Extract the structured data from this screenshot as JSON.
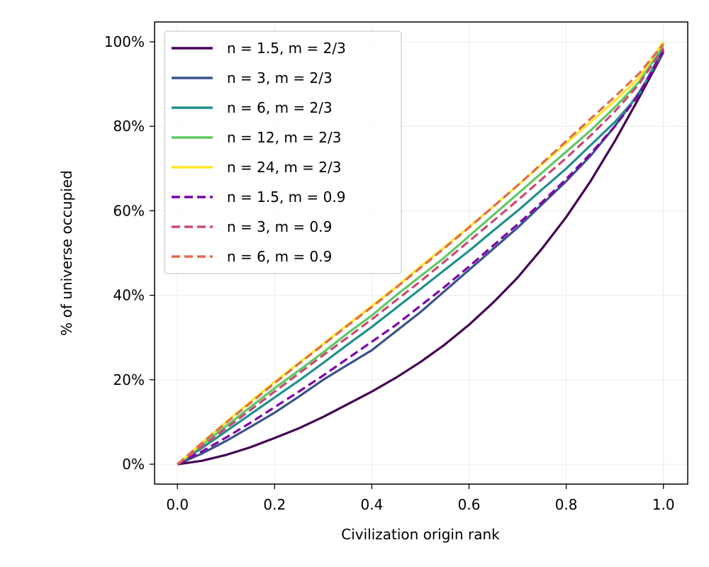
{
  "chart_data": {
    "type": "line",
    "title": "",
    "xlabel": "Civilization origin rank",
    "ylabel": "% of universe occupied",
    "xlim": [
      -0.047,
      1.05
    ],
    "ylim": [
      -0.047,
      1.047
    ],
    "x_ticks": [
      0.0,
      0.2,
      0.4,
      0.6,
      0.8,
      1.0
    ],
    "x_tick_labels": [
      "0.0",
      "0.2",
      "0.4",
      "0.6",
      "0.8",
      "1.0"
    ],
    "y_ticks": [
      0,
      0.2,
      0.4,
      0.6,
      0.8,
      1.0
    ],
    "y_tick_labels": [
      "0%",
      "20%",
      "40%",
      "60%",
      "80%",
      "100%"
    ],
    "grid": true,
    "legend_position": "upper-left",
    "series": [
      {
        "name": "n = 1.5, m = 2/3",
        "color": "#440154",
        "dash": "solid",
        "points": [
          [
            0,
            0
          ],
          [
            0.05,
            0.008
          ],
          [
            0.1,
            0.022
          ],
          [
            0.15,
            0.04
          ],
          [
            0.2,
            0.062
          ],
          [
            0.25,
            0.085
          ],
          [
            0.3,
            0.112
          ],
          [
            0.35,
            0.142
          ],
          [
            0.4,
            0.172
          ],
          [
            0.45,
            0.205
          ],
          [
            0.5,
            0.242
          ],
          [
            0.55,
            0.283
          ],
          [
            0.6,
            0.33
          ],
          [
            0.65,
            0.383
          ],
          [
            0.7,
            0.442
          ],
          [
            0.75,
            0.51
          ],
          [
            0.8,
            0.585
          ],
          [
            0.85,
            0.67
          ],
          [
            0.9,
            0.765
          ],
          [
            0.95,
            0.868
          ],
          [
            1.0,
            0.975
          ]
        ]
      },
      {
        "name": "n = 3, m = 2/3",
        "color": "#3b528b",
        "dash": "solid",
        "points": [
          [
            0,
            0
          ],
          [
            0.05,
            0.025
          ],
          [
            0.1,
            0.055
          ],
          [
            0.15,
            0.088
          ],
          [
            0.2,
            0.122
          ],
          [
            0.25,
            0.16
          ],
          [
            0.3,
            0.2
          ],
          [
            0.35,
            0.235
          ],
          [
            0.4,
            0.27
          ],
          [
            0.45,
            0.315
          ],
          [
            0.5,
            0.36
          ],
          [
            0.55,
            0.41
          ],
          [
            0.6,
            0.46
          ],
          [
            0.65,
            0.51
          ],
          [
            0.7,
            0.56
          ],
          [
            0.75,
            0.615
          ],
          [
            0.8,
            0.67
          ],
          [
            0.85,
            0.73
          ],
          [
            0.9,
            0.8
          ],
          [
            0.95,
            0.88
          ],
          [
            1.0,
            0.975
          ]
        ]
      },
      {
        "name": "n = 6, m = 2/3",
        "color": "#21918c",
        "dash": "solid",
        "points": [
          [
            0,
            0
          ],
          [
            0.05,
            0.038
          ],
          [
            0.1,
            0.078
          ],
          [
            0.15,
            0.118
          ],
          [
            0.2,
            0.158
          ],
          [
            0.25,
            0.198
          ],
          [
            0.3,
            0.24
          ],
          [
            0.35,
            0.283
          ],
          [
            0.4,
            0.325
          ],
          [
            0.45,
            0.37
          ],
          [
            0.5,
            0.415
          ],
          [
            0.55,
            0.46
          ],
          [
            0.6,
            0.505
          ],
          [
            0.65,
            0.553
          ],
          [
            0.7,
            0.6
          ],
          [
            0.75,
            0.65
          ],
          [
            0.8,
            0.7
          ],
          [
            0.85,
            0.755
          ],
          [
            0.9,
            0.81
          ],
          [
            0.95,
            0.875
          ],
          [
            1.0,
            0.985
          ]
        ]
      },
      {
        "name": "n = 12, m = 2/3",
        "color": "#5ec962",
        "dash": "solid",
        "points": [
          [
            0,
            0
          ],
          [
            0.05,
            0.045
          ],
          [
            0.1,
            0.09
          ],
          [
            0.15,
            0.135
          ],
          [
            0.2,
            0.18
          ],
          [
            0.25,
            0.222
          ],
          [
            0.3,
            0.265
          ],
          [
            0.35,
            0.31
          ],
          [
            0.4,
            0.352
          ],
          [
            0.45,
            0.4
          ],
          [
            0.5,
            0.445
          ],
          [
            0.55,
            0.49
          ],
          [
            0.6,
            0.54
          ],
          [
            0.65,
            0.59
          ],
          [
            0.7,
            0.64
          ],
          [
            0.75,
            0.69
          ],
          [
            0.8,
            0.74
          ],
          [
            0.85,
            0.79
          ],
          [
            0.9,
            0.845
          ],
          [
            0.95,
            0.905
          ],
          [
            1.0,
            0.99
          ]
        ]
      },
      {
        "name": "n = 24, m = 2/3",
        "color": "#fde725",
        "dash": "solid",
        "points": [
          [
            0,
            0
          ],
          [
            0.05,
            0.05
          ],
          [
            0.1,
            0.1
          ],
          [
            0.15,
            0.148
          ],
          [
            0.2,
            0.195
          ],
          [
            0.25,
            0.24
          ],
          [
            0.3,
            0.285
          ],
          [
            0.35,
            0.33
          ],
          [
            0.4,
            0.375
          ],
          [
            0.45,
            0.42
          ],
          [
            0.5,
            0.468
          ],
          [
            0.55,
            0.515
          ],
          [
            0.6,
            0.562
          ],
          [
            0.65,
            0.61
          ],
          [
            0.7,
            0.66
          ],
          [
            0.75,
            0.71
          ],
          [
            0.8,
            0.76
          ],
          [
            0.85,
            0.81
          ],
          [
            0.9,
            0.86
          ],
          [
            0.95,
            0.915
          ],
          [
            1.0,
            1.0
          ]
        ]
      },
      {
        "name": "n = 1.5, m = 0.9",
        "color": "#7e03a8",
        "dash": "dashed",
        "points": [
          [
            0,
            0
          ],
          [
            0.05,
            0.03
          ],
          [
            0.1,
            0.063
          ],
          [
            0.15,
            0.098
          ],
          [
            0.2,
            0.135
          ],
          [
            0.25,
            0.172
          ],
          [
            0.3,
            0.21
          ],
          [
            0.35,
            0.25
          ],
          [
            0.4,
            0.29
          ],
          [
            0.45,
            0.33
          ],
          [
            0.5,
            0.375
          ],
          [
            0.55,
            0.42
          ],
          [
            0.6,
            0.468
          ],
          [
            0.65,
            0.518
          ],
          [
            0.7,
            0.568
          ],
          [
            0.75,
            0.62
          ],
          [
            0.8,
            0.675
          ],
          [
            0.85,
            0.735
          ],
          [
            0.9,
            0.8
          ],
          [
            0.95,
            0.875
          ],
          [
            1.0,
            0.98
          ]
        ]
      },
      {
        "name": "n = 3, m = 0.9",
        "color": "#cc4778",
        "dash": "dashed",
        "points": [
          [
            0,
            0
          ],
          [
            0.05,
            0.042
          ],
          [
            0.1,
            0.085
          ],
          [
            0.15,
            0.128
          ],
          [
            0.2,
            0.172
          ],
          [
            0.25,
            0.215
          ],
          [
            0.3,
            0.258
          ],
          [
            0.35,
            0.3
          ],
          [
            0.4,
            0.343
          ],
          [
            0.45,
            0.388
          ],
          [
            0.5,
            0.433
          ],
          [
            0.55,
            0.48
          ],
          [
            0.6,
            0.528
          ],
          [
            0.65,
            0.576
          ],
          [
            0.7,
            0.625
          ],
          [
            0.75,
            0.675
          ],
          [
            0.8,
            0.725
          ],
          [
            0.85,
            0.778
          ],
          [
            0.9,
            0.835
          ],
          [
            0.95,
            0.9
          ],
          [
            1.0,
            0.985
          ]
        ]
      },
      {
        "name": "n = 6, m = 0.9",
        "color": "#e16a4e",
        "dash": "dashed",
        "points": [
          [
            0,
            0
          ],
          [
            0.05,
            0.05
          ],
          [
            0.1,
            0.098
          ],
          [
            0.15,
            0.145
          ],
          [
            0.2,
            0.192
          ],
          [
            0.25,
            0.238
          ],
          [
            0.3,
            0.283
          ],
          [
            0.35,
            0.328
          ],
          [
            0.4,
            0.372
          ],
          [
            0.45,
            0.418
          ],
          [
            0.5,
            0.465
          ],
          [
            0.55,
            0.512
          ],
          [
            0.6,
            0.56
          ],
          [
            0.65,
            0.61
          ],
          [
            0.7,
            0.66
          ],
          [
            0.75,
            0.712
          ],
          [
            0.8,
            0.765
          ],
          [
            0.85,
            0.818
          ],
          [
            0.9,
            0.87
          ],
          [
            0.95,
            0.925
          ],
          [
            1.0,
            0.995
          ]
        ]
      }
    ]
  }
}
